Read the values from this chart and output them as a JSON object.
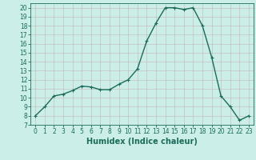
{
  "x": [
    0,
    1,
    2,
    3,
    4,
    5,
    6,
    7,
    8,
    9,
    10,
    11,
    12,
    13,
    14,
    15,
    16,
    17,
    18,
    19,
    20,
    21,
    22,
    23
  ],
  "y": [
    8,
    9,
    10.2,
    10.4,
    10.8,
    11.3,
    11.2,
    10.9,
    10.9,
    11.5,
    12.0,
    13.2,
    16.3,
    18.3,
    20.0,
    20.0,
    19.8,
    20.0,
    18.0,
    14.5,
    10.2,
    9.0,
    7.5,
    8.0
  ],
  "line_color": "#1a6b5a",
  "marker": "+",
  "marker_size": 3,
  "bg_color": "#cceee8",
  "grid_color": "#b0ccc8",
  "xlabel": "Humidex (Indice chaleur)",
  "xlim": [
    -0.5,
    23.5
  ],
  "ylim": [
    7,
    20.5
  ],
  "yticks": [
    7,
    8,
    9,
    10,
    11,
    12,
    13,
    14,
    15,
    16,
    17,
    18,
    19,
    20
  ],
  "xticks": [
    0,
    1,
    2,
    3,
    4,
    5,
    6,
    7,
    8,
    9,
    10,
    11,
    12,
    13,
    14,
    15,
    16,
    17,
    18,
    19,
    20,
    21,
    22,
    23
  ],
  "xlabel_fontsize": 7,
  "tick_fontsize": 5.5,
  "line_width": 1.0
}
